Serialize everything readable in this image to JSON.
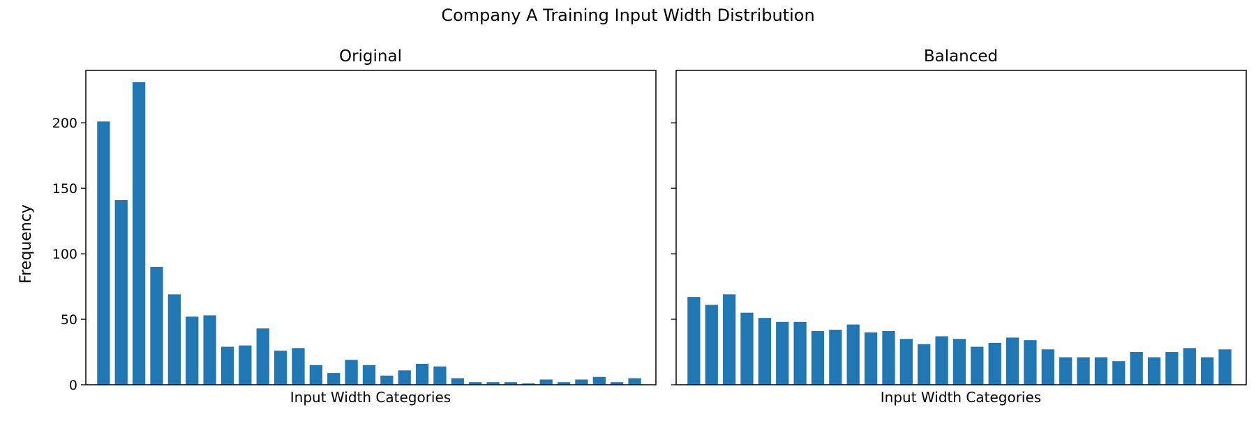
{
  "figure_title": "Company A Training Input Width Distribution",
  "colors": {
    "bar": "#1f77b4",
    "axis": "#000000",
    "background": "#ffffff"
  },
  "chart_data": [
    {
      "type": "bar",
      "title": "Original",
      "xlabel": "Input Width Categories",
      "ylabel": "Frequency",
      "ylim": [
        0,
        240
      ],
      "yticks": [
        0,
        50,
        100,
        150,
        200
      ],
      "x_tick_labels_visible": false,
      "grid": false,
      "values": [
        201,
        141,
        231,
        90,
        69,
        52,
        53,
        29,
        30,
        43,
        26,
        28,
        15,
        9,
        19,
        15,
        7,
        11,
        16,
        14,
        5,
        2,
        2,
        2,
        1,
        4,
        2,
        4,
        6,
        2,
        5
      ]
    },
    {
      "type": "bar",
      "title": "Balanced",
      "xlabel": "Input Width Categories",
      "ylabel": "",
      "ylim": [
        0,
        240
      ],
      "yticks": [
        0,
        50,
        100,
        150,
        200
      ],
      "shared_y_axis": true,
      "x_tick_labels_visible": false,
      "grid": false,
      "values": [
        67,
        61,
        69,
        55,
        51,
        48,
        48,
        41,
        42,
        46,
        40,
        41,
        35,
        31,
        37,
        35,
        29,
        32,
        36,
        34,
        27,
        21,
        21,
        21,
        18,
        25,
        21,
        25,
        28,
        21,
        27
      ]
    }
  ]
}
